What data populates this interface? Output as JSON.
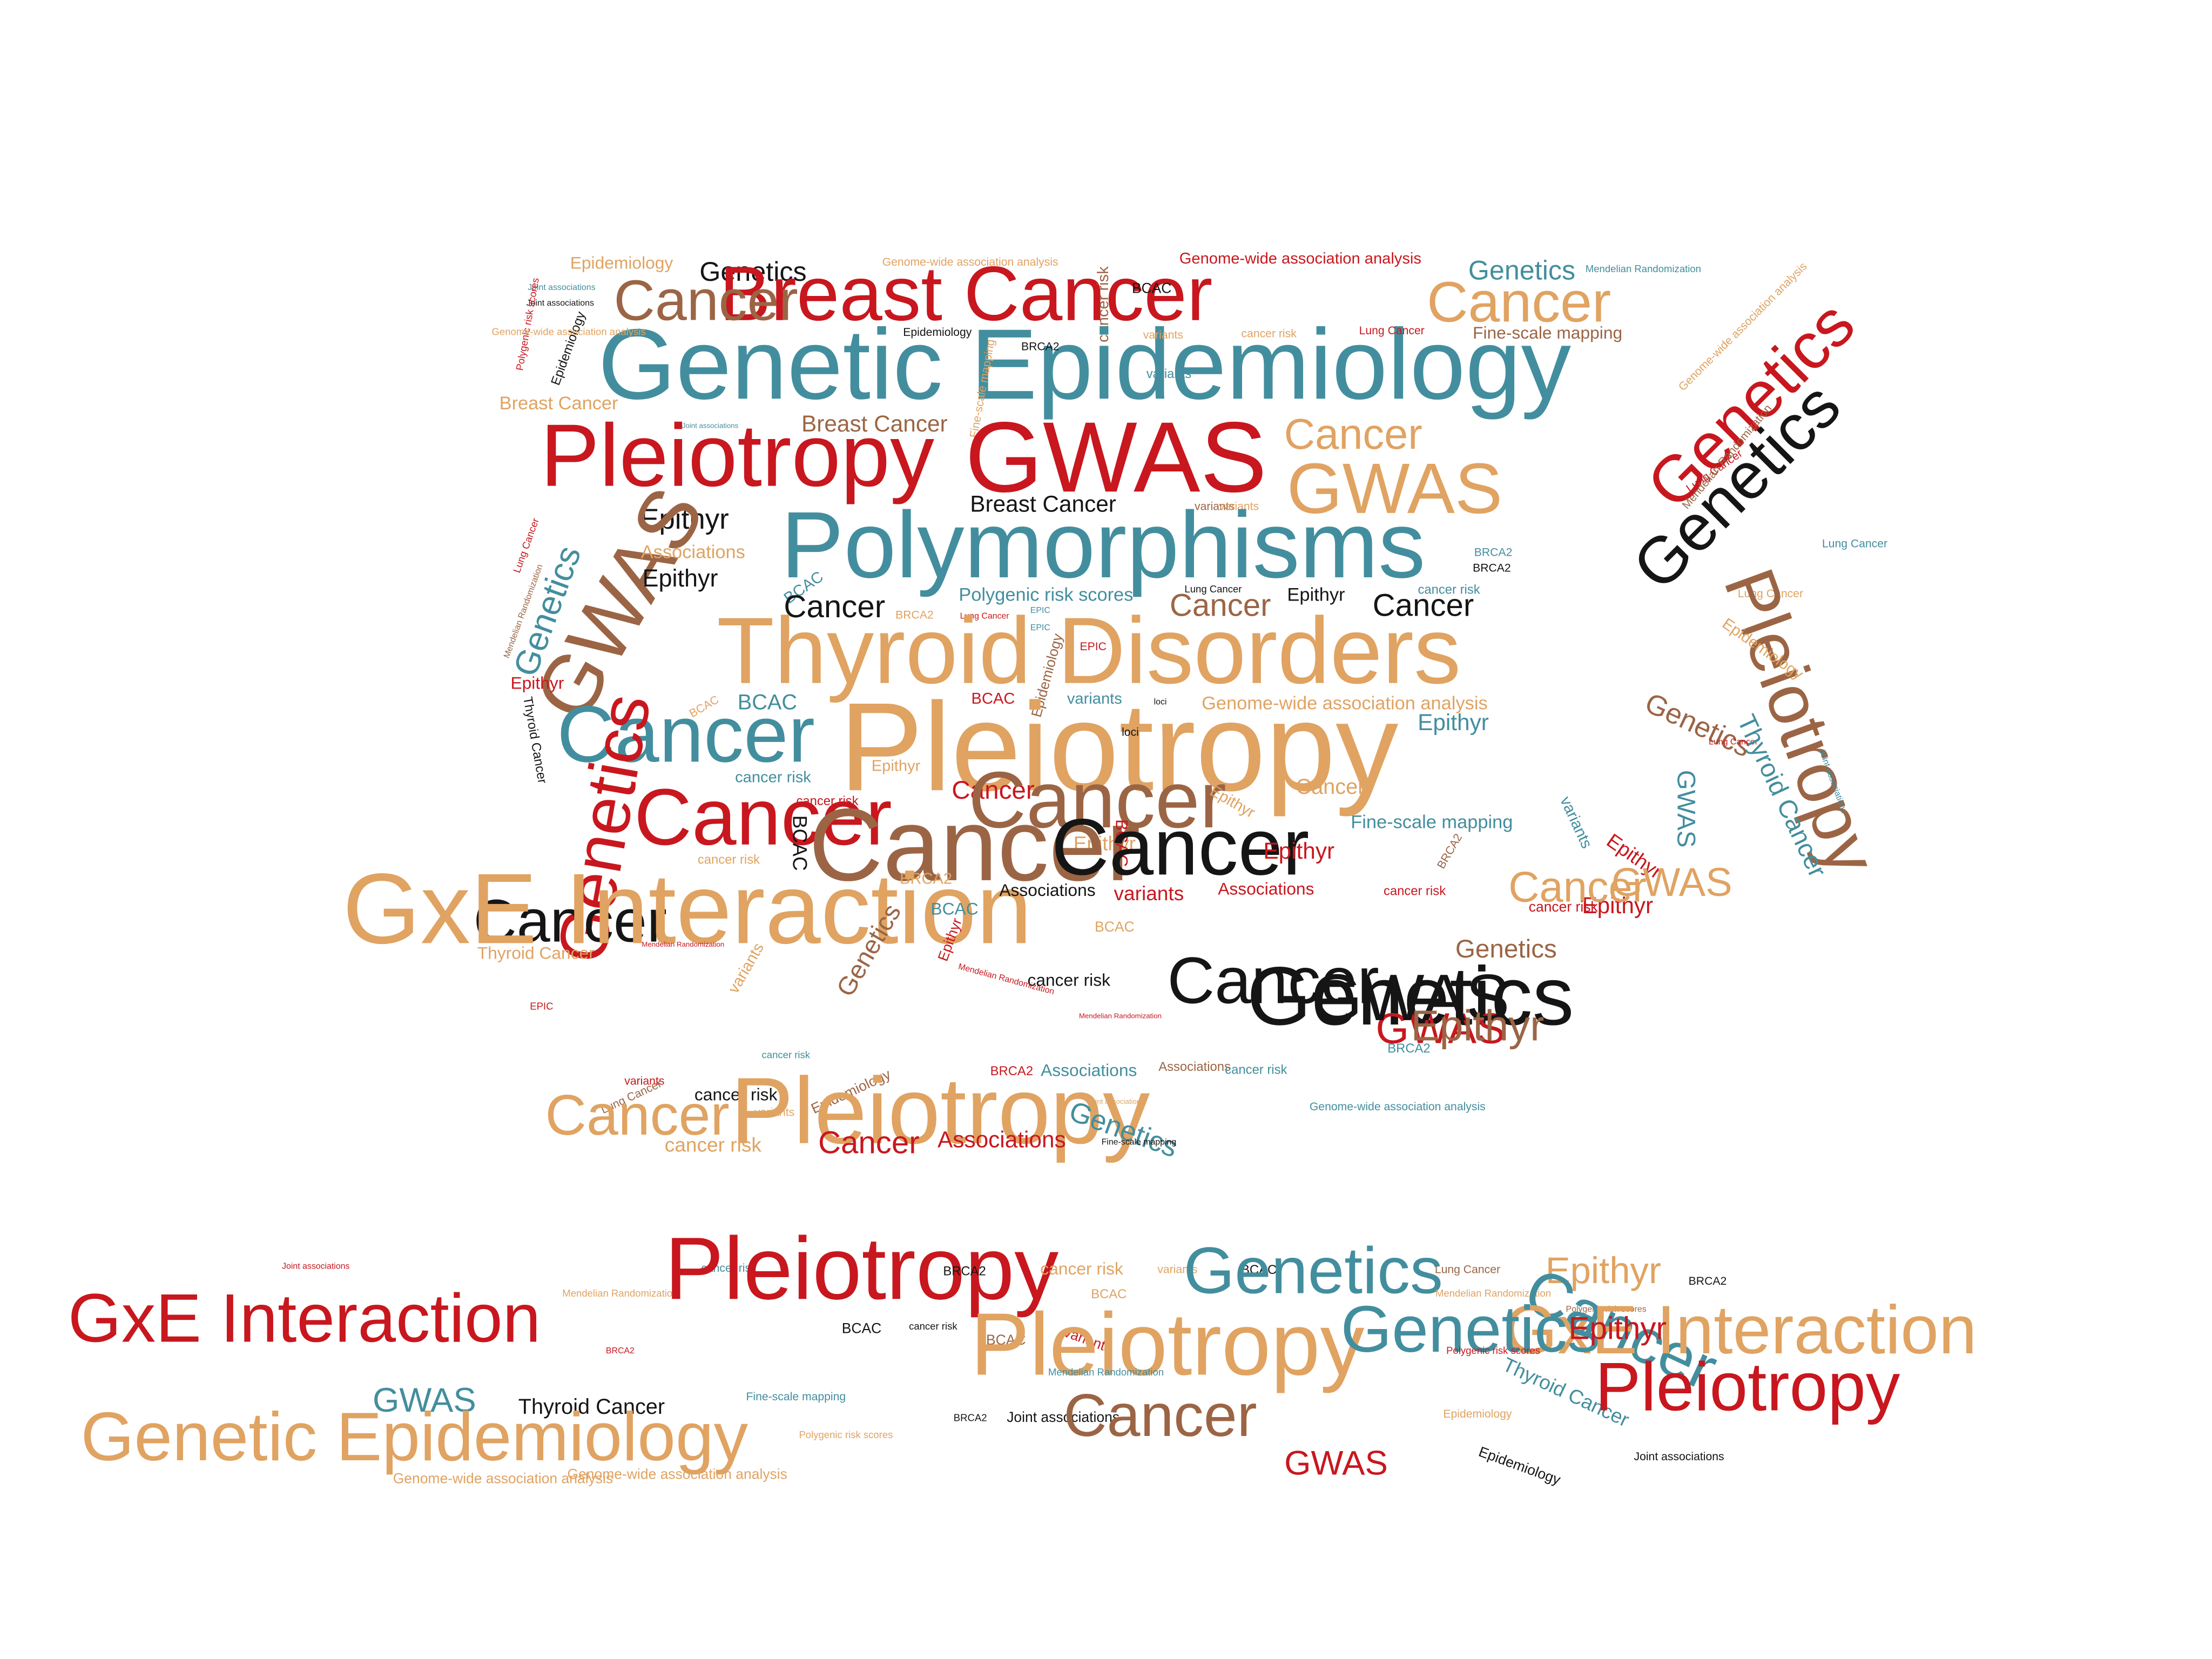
{
  "palette": {
    "red": "#c8171e",
    "black": "#151515",
    "teal": "#438e9e",
    "tan": "#e0a362",
    "brown": "#9b6545"
  },
  "words": [
    {
      "text": "Epidemiology",
      "color": "tan",
      "size": 12,
      "angle": 0
    },
    {
      "text": "Genetics",
      "color": "black",
      "size": 19,
      "angle": 0
    },
    {
      "text": "Breast Cancer",
      "color": "red",
      "size": 54,
      "angle": 0
    },
    {
      "text": "Genome-wide association analysis",
      "color": "tan",
      "size": 8,
      "angle": 0
    },
    {
      "text": "Genome-wide association analysis",
      "color": "red",
      "size": 11,
      "angle": 0
    },
    {
      "text": "Genetics",
      "color": "teal",
      "size": 19,
      "angle": 0
    },
    {
      "text": "Mendelian Randomization",
      "color": "teal",
      "size": 7,
      "angle": 0
    },
    {
      "text": "Cancer",
      "color": "brown",
      "size": 40,
      "angle": 0
    },
    {
      "text": "cancer risk",
      "color": "brown",
      "size": 11,
      "angle": 90
    },
    {
      "text": "BCAC",
      "color": "black",
      "size": 10,
      "angle": 0
    },
    {
      "text": "Cancer",
      "color": "tan",
      "size": 40,
      "angle": 0
    },
    {
      "text": "Genome-wide association analysis",
      "color": "tan",
      "size": 8,
      "angle": 45
    },
    {
      "text": "Genetic Epidemiology",
      "color": "teal",
      "size": 70,
      "angle": 0
    },
    {
      "text": "Genetics",
      "color": "red",
      "size": 46,
      "angle": 45
    },
    {
      "text": "Genetics",
      "color": "black",
      "size": 46,
      "angle": 45
    },
    {
      "text": "Fine-scale mapping",
      "color": "brown",
      "size": 12,
      "angle": 0
    },
    {
      "text": "variants",
      "color": "tan",
      "size": 8,
      "angle": 0
    },
    {
      "text": "cancer risk",
      "color": "tan",
      "size": 8,
      "angle": 0
    },
    {
      "text": "Lung Cancer",
      "color": "red",
      "size": 8,
      "angle": 0
    },
    {
      "text": "Joint associations",
      "color": "teal",
      "size": 6,
      "angle": 0
    },
    {
      "text": "Joint associations",
      "color": "black",
      "size": 6,
      "angle": 0
    },
    {
      "text": "Polygenic risk scores",
      "color": "red",
      "size": 7,
      "angle": 80
    },
    {
      "text": "Epidemiology",
      "color": "black",
      "size": 9,
      "angle": 70
    },
    {
      "text": "Genome-wide association analysis",
      "color": "tan",
      "size": 7,
      "angle": 0
    },
    {
      "text": "Epidemiology",
      "color": "black",
      "size": 8,
      "angle": 0
    },
    {
      "text": "BRCA2",
      "color": "black",
      "size": 8,
      "angle": 0
    },
    {
      "text": "variants",
      "color": "teal",
      "size": 9,
      "angle": 0
    },
    {
      "text": "Fine-scale mapping",
      "color": "tan",
      "size": 8,
      "angle": 80
    },
    {
      "text": "Breast Cancer",
      "color": "tan",
      "size": 13,
      "angle": 0
    },
    {
      "text": "Breast Cancer",
      "color": "brown",
      "size": 16,
      "angle": 0
    },
    {
      "text": "Joint associations",
      "color": "teal",
      "size": 5,
      "angle": 0
    },
    {
      "text": "Pleiotropy",
      "color": "red",
      "size": 62,
      "angle": 0
    },
    {
      "text": "GWAS",
      "color": "red",
      "size": 70,
      "angle": 0
    },
    {
      "text": "Cancer",
      "color": "tan",
      "size": 30,
      "angle": 0
    },
    {
      "text": "GWAS",
      "color": "tan",
      "size": 50,
      "angle": 0
    },
    {
      "text": "Lung Cancer",
      "color": "red",
      "size": 8,
      "angle": 35
    },
    {
      "text": "Mendelian Randomization",
      "color": "brown",
      "size": 8,
      "angle": 50
    },
    {
      "text": "Breast Cancer",
      "color": "black",
      "size": 16,
      "angle": 0
    },
    {
      "text": "variants",
      "color": "brown",
      "size": 8,
      "angle": 0
    },
    {
      "text": "variants",
      "color": "tan",
      "size": 8,
      "angle": 0
    },
    {
      "text": "Epithyr",
      "color": "black",
      "size": 20,
      "angle": 0
    },
    {
      "text": "GWAS",
      "color": "brown",
      "size": 58,
      "angle": 60
    },
    {
      "text": "Polymorphisms",
      "color": "teal",
      "size": 66,
      "angle": 0
    },
    {
      "text": "Lung Cancer",
      "color": "red",
      "size": 7,
      "angle": 70
    },
    {
      "text": "Associations",
      "color": "tan",
      "size": 13,
      "angle": 0
    },
    {
      "text": "BRCA2",
      "color": "teal",
      "size": 8,
      "angle": 0
    },
    {
      "text": "BRCA2",
      "color": "black",
      "size": 8,
      "angle": 0
    },
    {
      "text": "Epithyr",
      "color": "black",
      "size": 17,
      "angle": 0
    },
    {
      "text": "Genetics",
      "color": "teal",
      "size": 24,
      "angle": 70
    },
    {
      "text": "Mendelian Randomization",
      "color": "brown",
      "size": 6,
      "angle": 70
    },
    {
      "text": "BCAC",
      "color": "teal",
      "size": 11,
      "angle": 35
    },
    {
      "text": "Polygenic risk scores",
      "color": "teal",
      "size": 13,
      "angle": 0
    },
    {
      "text": "Lung Cancer",
      "color": "black",
      "size": 7,
      "angle": 0
    },
    {
      "text": "Epithyr",
      "color": "black",
      "size": 13,
      "angle": 0
    },
    {
      "text": "cancer risk",
      "color": "teal",
      "size": 9,
      "angle": 0
    },
    {
      "text": "Lung Cancer",
      "color": "teal",
      "size": 8,
      "angle": 0
    },
    {
      "text": "Cancer",
      "color": "black",
      "size": 22,
      "angle": 0
    },
    {
      "text": "BRCA2",
      "color": "tan",
      "size": 8,
      "angle": 0
    },
    {
      "text": "Cancer",
      "color": "brown",
      "size": 22,
      "angle": 0
    },
    {
      "text": "Cancer",
      "color": "black",
      "size": 22,
      "angle": 0
    },
    {
      "text": "Lung Cancer",
      "color": "tan",
      "size": 8,
      "angle": 0
    },
    {
      "text": "Lung Cancer",
      "color": "red",
      "size": 6,
      "angle": 0
    },
    {
      "text": "EPIC",
      "color": "teal",
      "size": 6,
      "angle": 0
    },
    {
      "text": "EPIC",
      "color": "teal",
      "size": 6,
      "angle": 0
    },
    {
      "text": "Thyroid Disorders",
      "color": "tan",
      "size": 66,
      "angle": 0
    },
    {
      "text": "Epidemiology",
      "color": "brown",
      "size": 10,
      "angle": 75
    },
    {
      "text": "EPIC",
      "color": "red",
      "size": 8,
      "angle": 0
    },
    {
      "text": "Pleiotropy",
      "color": "brown",
      "size": 50,
      "angle": -70
    },
    {
      "text": "Epidemiology",
      "color": "tan",
      "size": 11,
      "angle": -35
    },
    {
      "text": "Epithyr",
      "color": "red",
      "size": 12,
      "angle": 0
    },
    {
      "text": "BCAC",
      "color": "tan",
      "size": 8,
      "angle": 30
    },
    {
      "text": "BCAC",
      "color": "teal",
      "size": 15,
      "angle": 0
    },
    {
      "text": "BCAC",
      "color": "red",
      "size": 11,
      "angle": 0
    },
    {
      "text": "variants",
      "color": "teal",
      "size": 11,
      "angle": 0
    },
    {
      "text": "loci",
      "color": "black",
      "size": 6,
      "angle": 0
    },
    {
      "text": "Genome-wide association analysis",
      "color": "tan",
      "size": 13,
      "angle": 0
    },
    {
      "text": "Genetics",
      "color": "brown",
      "size": 20,
      "angle": -25
    },
    {
      "text": "Thyroid Cancer",
      "color": "black",
      "size": 9,
      "angle": -80
    },
    {
      "text": "Cancer",
      "color": "teal",
      "size": 56,
      "angle": 0
    },
    {
      "text": "Pleiotropy",
      "color": "tan",
      "size": 88,
      "angle": 0
    },
    {
      "text": "Epithyr",
      "color": "teal",
      "size": 16,
      "angle": 0
    },
    {
      "text": "loci",
      "color": "black",
      "size": 8,
      "angle": 0
    },
    {
      "text": "Lung Cancer",
      "color": "red",
      "size": 6,
      "angle": 0
    },
    {
      "text": "Thyroid Cancer",
      "color": "teal",
      "size": 18,
      "angle": -65
    },
    {
      "text": "Joint associations",
      "color": "teal",
      "size": 6,
      "angle": -70
    },
    {
      "text": "cancer risk",
      "color": "teal",
      "size": 11,
      "angle": 0
    },
    {
      "text": "Epithyr",
      "color": "tan",
      "size": 11,
      "angle": 0
    },
    {
      "text": "Cancer",
      "color": "red",
      "size": 56,
      "angle": 0
    },
    {
      "text": "cancer risk",
      "color": "red",
      "size": 9,
      "angle": 0
    },
    {
      "text": "Cancer",
      "color": "red",
      "size": 18,
      "angle": 0
    },
    {
      "text": "Cancer",
      "color": "brown",
      "size": 56,
      "angle": 0
    },
    {
      "text": "Epithyr",
      "color": "tan",
      "size": 14,
      "angle": 0
    },
    {
      "text": "Epithyr",
      "color": "tan",
      "size": 11,
      "angle": -30
    },
    {
      "text": "Cancer",
      "color": "tan",
      "size": 15,
      "angle": 0
    },
    {
      "text": "Fine-scale mapping",
      "color": "teal",
      "size": 13,
      "angle": 0
    },
    {
      "text": "variants",
      "color": "teal",
      "size": 11,
      "angle": -65
    },
    {
      "text": "GWAS",
      "color": "teal",
      "size": 18,
      "angle": -90
    },
    {
      "text": "Genetics",
      "color": "red",
      "size": 48,
      "angle": 80
    },
    {
      "text": "Cancer",
      "color": "black",
      "size": 42,
      "angle": 0
    },
    {
      "text": "cancer risk",
      "color": "tan",
      "size": 9,
      "angle": 0
    },
    {
      "text": "BCAC",
      "color": "black",
      "size": 14,
      "angle": -90
    },
    {
      "text": "Cancer",
      "color": "brown",
      "size": 72,
      "angle": 0
    },
    {
      "text": "BCAC",
      "color": "red",
      "size": 12,
      "angle": -90
    },
    {
      "text": "Cancer",
      "color": "black",
      "size": 56,
      "angle": 0
    },
    {
      "text": "BRCA2",
      "color": "brown",
      "size": 8,
      "angle": 60
    },
    {
      "text": "Epithyr",
      "color": "red",
      "size": 16,
      "angle": 0
    },
    {
      "text": "Epithyr",
      "color": "red",
      "size": 14,
      "angle": -35
    },
    {
      "text": "Epithyr",
      "color": "red",
      "size": 16,
      "angle": 0
    },
    {
      "text": "GWAS",
      "color": "tan",
      "size": 28,
      "angle": 0
    },
    {
      "text": "GxE Interaction",
      "color": "tan",
      "size": 70,
      "angle": 0
    },
    {
      "text": "BCAC",
      "color": "tan",
      "size": 10,
      "angle": 0
    },
    {
      "text": "BRCA2",
      "color": "tan",
      "size": 11,
      "angle": 0
    },
    {
      "text": "BCAC",
      "color": "teal",
      "size": 12,
      "angle": 0
    },
    {
      "text": "Associations",
      "color": "black",
      "size": 12,
      "angle": 0
    },
    {
      "text": "variants",
      "color": "red",
      "size": 14,
      "angle": 0
    },
    {
      "text": "Associations",
      "color": "red",
      "size": 12,
      "angle": 0
    },
    {
      "text": "cancer risk",
      "color": "red",
      "size": 9,
      "angle": 0
    },
    {
      "text": "Cancer",
      "color": "tan",
      "size": 30,
      "angle": 0
    },
    {
      "text": "Epithyr",
      "color": "red",
      "size": 10,
      "angle": 70
    },
    {
      "text": "cancer risk",
      "color": "red",
      "size": 10,
      "angle": 0
    },
    {
      "text": "Genetics",
      "color": "brown",
      "size": 18,
      "angle": 0
    },
    {
      "text": "Mendelian Randomization",
      "color": "red",
      "size": 5,
      "angle": 0
    },
    {
      "text": "variants",
      "color": "tan",
      "size": 11,
      "angle": 60
    },
    {
      "text": "Genetics",
      "color": "brown",
      "size": 18,
      "angle": 60
    },
    {
      "text": "Thyroid Cancer",
      "color": "tan",
      "size": 12,
      "angle": 0
    },
    {
      "text": "EPIC",
      "color": "red",
      "size": 7,
      "angle": 0
    },
    {
      "text": "cancer risk",
      "color": "black",
      "size": 12,
      "angle": 0
    },
    {
      "text": "Mendelian Randomization",
      "color": "red",
      "size": 6,
      "angle": -15
    },
    {
      "text": "Cancer",
      "color": "black",
      "size": 46,
      "angle": 0
    },
    {
      "text": "Genetics",
      "color": "black",
      "size": 58,
      "angle": 0
    },
    {
      "text": "GWAS",
      "color": "red",
      "size": 30,
      "angle": 0
    },
    {
      "text": "Mendelian Randomization",
      "color": "red",
      "size": 5,
      "angle": 0
    },
    {
      "text": "GWAS",
      "color": "black",
      "size": 46,
      "angle": 0
    },
    {
      "text": "Epithyr",
      "color": "brown",
      "size": 30,
      "angle": 0
    },
    {
      "text": "cancer risk",
      "color": "teal",
      "size": 7,
      "angle": 0
    },
    {
      "text": "BRCA2",
      "color": "teal",
      "size": 9,
      "angle": 0
    },
    {
      "text": "BRCA2",
      "color": "red",
      "size": 9,
      "angle": 0
    },
    {
      "text": "Associations",
      "color": "teal",
      "size": 12,
      "angle": 0
    },
    {
      "text": "Associations",
      "color": "brown",
      "size": 9,
      "angle": 0
    },
    {
      "text": "cancer risk",
      "color": "teal",
      "size": 9,
      "angle": 0
    },
    {
      "text": "variants",
      "color": "red",
      "size": 8,
      "angle": 0
    },
    {
      "text": "cancer risk",
      "color": "black",
      "size": 12,
      "angle": 0
    },
    {
      "text": "Epidemiology",
      "color": "brown",
      "size": 10,
      "angle": 25
    },
    {
      "text": "Lung Cancer",
      "color": "brown",
      "size": 8,
      "angle": 25
    },
    {
      "text": "Cancer",
      "color": "tan",
      "size": 40,
      "angle": 0
    },
    {
      "text": "variants",
      "color": "tan",
      "size": 8,
      "angle": 0
    },
    {
      "text": "Pleiotropy",
      "color": "tan",
      "size": 66,
      "angle": 0
    },
    {
      "text": "Joint associations",
      "color": "tan",
      "size": 5,
      "angle": 0
    },
    {
      "text": "Genetics",
      "color": "teal",
      "size": 20,
      "angle": -20
    },
    {
      "text": "Genome-wide association analysis",
      "color": "teal",
      "size": 8,
      "angle": 0
    },
    {
      "text": "cancer risk",
      "color": "tan",
      "size": 14,
      "angle": 0
    },
    {
      "text": "Cancer",
      "color": "red",
      "size": 22,
      "angle": 0
    },
    {
      "text": "Associations",
      "color": "red",
      "size": 16,
      "angle": 0
    },
    {
      "text": "Fine-scale mapping",
      "color": "black",
      "size": 6,
      "angle": 0
    },
    {
      "text": "Joint associations",
      "color": "red",
      "size": 6,
      "angle": 0
    },
    {
      "text": "GxE Interaction",
      "color": "red",
      "size": 48,
      "angle": 0
    },
    {
      "text": "Mendelian Randomization",
      "color": "tan",
      "size": 7,
      "angle": 0
    },
    {
      "text": "cancer risk",
      "color": "teal",
      "size": 8,
      "angle": 0
    },
    {
      "text": "Pleiotropy",
      "color": "red",
      "size": 62,
      "angle": 0
    },
    {
      "text": "BCAC",
      "color": "tan",
      "size": 9,
      "angle": 0
    },
    {
      "text": "BRCA2",
      "color": "black",
      "size": 9,
      "angle": 0
    },
    {
      "text": "cancer risk",
      "color": "tan",
      "size": 12,
      "angle": 0
    },
    {
      "text": "variants",
      "color": "tan",
      "size": 8,
      "angle": 0
    },
    {
      "text": "BCAC",
      "color": "black",
      "size": 9,
      "angle": 0
    },
    {
      "text": "Genetics",
      "color": "teal",
      "size": 46,
      "angle": 0
    },
    {
      "text": "Mendelian Randomization",
      "color": "tan",
      "size": 7,
      "angle": 0
    },
    {
      "text": "Lung Cancer",
      "color": "brown",
      "size": 8,
      "angle": 0
    },
    {
      "text": "Epithyr",
      "color": "tan",
      "size": 26,
      "angle": 0
    },
    {
      "text": "BRCA2",
      "color": "black",
      "size": 8,
      "angle": 0
    },
    {
      "text": "Polygenic risk scores",
      "color": "brown",
      "size": 6,
      "angle": 0
    },
    {
      "text": "Cancer",
      "color": "teal",
      "size": 44,
      "angle": -25
    },
    {
      "text": "GxE Interaction",
      "color": "tan",
      "size": 48,
      "angle": 0
    },
    {
      "text": "BRCA2",
      "color": "red",
      "size": 6,
      "angle": 0
    },
    {
      "text": "cancer risk",
      "color": "black",
      "size": 7,
      "angle": 0
    },
    {
      "text": "BCAC",
      "color": "black",
      "size": 10,
      "angle": 0
    },
    {
      "text": "BCAC",
      "color": "brown",
      "size": 10,
      "angle": 0
    },
    {
      "text": "variants",
      "color": "red",
      "size": 10,
      "angle": -20
    },
    {
      "text": "Pleiotropy",
      "color": "tan",
      "size": 62,
      "angle": 0
    },
    {
      "text": "Mendelian Randomization",
      "color": "teal",
      "size": 7,
      "angle": 0
    },
    {
      "text": "Genetics",
      "color": "teal",
      "size": 46,
      "angle": 0
    },
    {
      "text": "Polygenic risk scores",
      "color": "red",
      "size": 7,
      "angle": 0
    },
    {
      "text": "Epithyr",
      "color": "red",
      "size": 22,
      "angle": 0
    },
    {
      "text": "GWAS",
      "color": "teal",
      "size": 24,
      "angle": 0
    },
    {
      "text": "Thyroid Cancer",
      "color": "black",
      "size": 15,
      "angle": 0
    },
    {
      "text": "Fine-scale mapping",
      "color": "teal",
      "size": 8,
      "angle": 0
    },
    {
      "text": "Thyroid Cancer",
      "color": "teal",
      "size": 14,
      "angle": -25
    },
    {
      "text": "Pleiotropy",
      "color": "red",
      "size": 48,
      "angle": 0
    },
    {
      "text": "Epidemiology",
      "color": "tan",
      "size": 8,
      "angle": 0
    },
    {
      "text": "Genetic Epidemiology",
      "color": "tan",
      "size": 48,
      "angle": 0
    },
    {
      "text": "Polygenic risk scores",
      "color": "tan",
      "size": 7,
      "angle": 0
    },
    {
      "text": "BRCA2",
      "color": "black",
      "size": 7,
      "angle": 0
    },
    {
      "text": "Joint associations",
      "color": "black",
      "size": 10,
      "angle": 0
    },
    {
      "text": "Cancer",
      "color": "brown",
      "size": 42,
      "angle": 0
    },
    {
      "text": "GWAS",
      "color": "red",
      "size": 24,
      "angle": 0
    },
    {
      "text": "Epidemiology",
      "color": "black",
      "size": 10,
      "angle": -20
    },
    {
      "text": "Joint associations",
      "color": "black",
      "size": 8,
      "angle": 0
    },
    {
      "text": "Genome-wide association analysis",
      "color": "tan",
      "size": 10,
      "angle": 0
    },
    {
      "text": "Genome-wide association analysis",
      "color": "tan",
      "size": 10,
      "angle": 0
    }
  ]
}
